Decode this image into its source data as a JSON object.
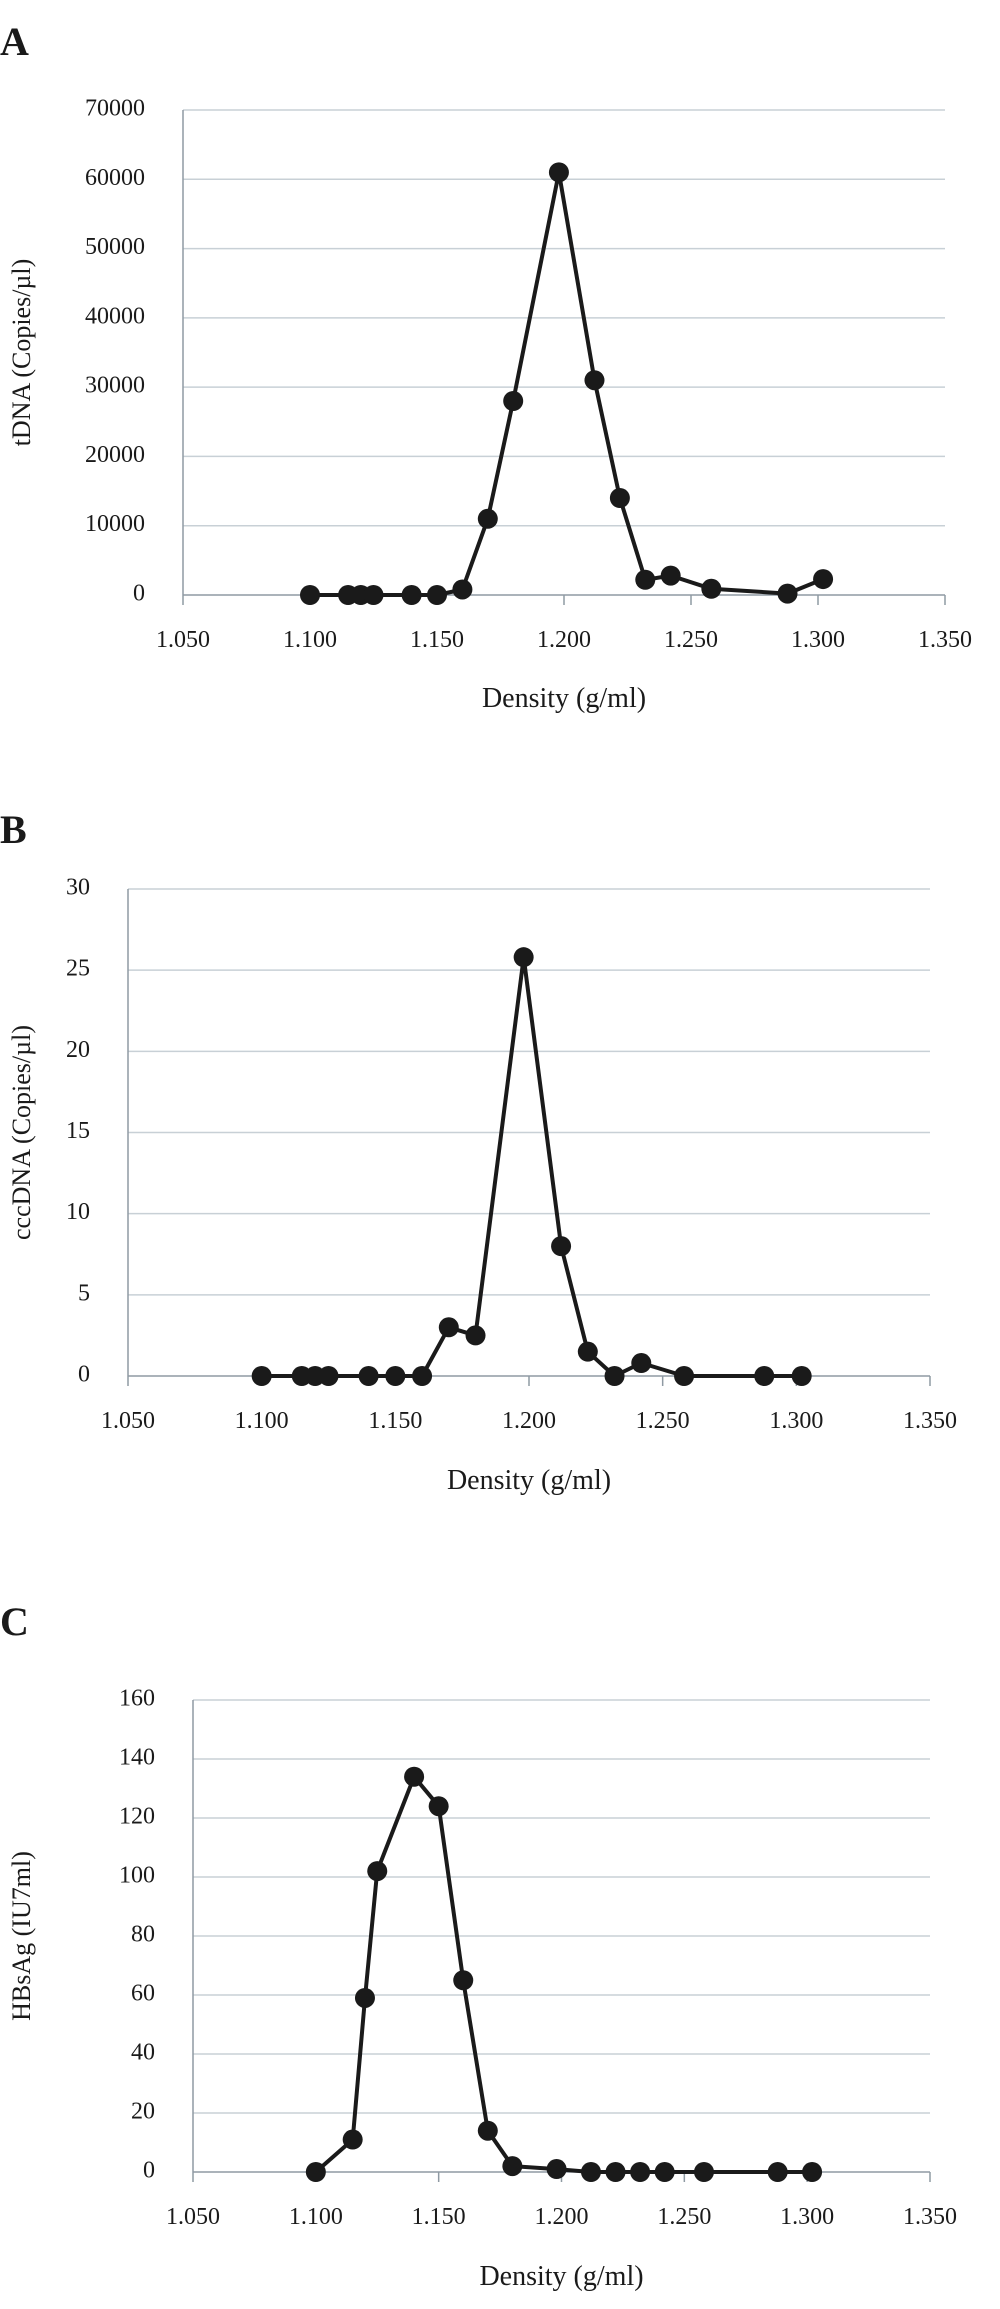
{
  "chart_data": [
    {
      "panel_label": "A",
      "type": "line",
      "xlabel": "Density (g/ml)",
      "ylabel": "tDNA (Copies/µl)",
      "xlim": [
        1.05,
        1.35
      ],
      "x_ticks": [
        "1.050",
        "1.100",
        "1.150",
        "1.200",
        "1.250",
        "1.300",
        "1.350"
      ],
      "ylim": [
        0,
        70000
      ],
      "y_ticks": [
        "0",
        "10000",
        "20000",
        "30000",
        "40000",
        "50000",
        "60000",
        "70000"
      ],
      "grid": true,
      "points": [
        {
          "x": 1.1,
          "y": 0
        },
        {
          "x": 1.115,
          "y": 0
        },
        {
          "x": 1.12,
          "y": 0
        },
        {
          "x": 1.125,
          "y": 0
        },
        {
          "x": 1.14,
          "y": 0
        },
        {
          "x": 1.15,
          "y": 0
        },
        {
          "x": 1.16,
          "y": 800
        },
        {
          "x": 1.17,
          "y": 11000
        },
        {
          "x": 1.18,
          "y": 28000
        },
        {
          "x": 1.198,
          "y": 61000
        },
        {
          "x": 1.212,
          "y": 31000
        },
        {
          "x": 1.222,
          "y": 14000
        },
        {
          "x": 1.232,
          "y": 2200
        },
        {
          "x": 1.242,
          "y": 2800
        },
        {
          "x": 1.258,
          "y": 900
        },
        {
          "x": 1.288,
          "y": 200
        },
        {
          "x": 1.302,
          "y": 2300
        }
      ]
    },
    {
      "panel_label": "B",
      "type": "line",
      "xlabel": "Density (g/ml)",
      "ylabel": "cccDNA (Copies/µl)",
      "xlim": [
        1.05,
        1.35
      ],
      "x_ticks": [
        "1.050",
        "1.100",
        "1.150",
        "1.200",
        "1.250",
        "1.300",
        "1.350"
      ],
      "ylim": [
        0,
        30
      ],
      "y_ticks": [
        "0",
        "5",
        "10",
        "15",
        "20",
        "25",
        "30"
      ],
      "grid": true,
      "points": [
        {
          "x": 1.1,
          "y": 0
        },
        {
          "x": 1.115,
          "y": 0
        },
        {
          "x": 1.12,
          "y": 0
        },
        {
          "x": 1.125,
          "y": 0
        },
        {
          "x": 1.14,
          "y": 0
        },
        {
          "x": 1.15,
          "y": 0
        },
        {
          "x": 1.16,
          "y": 0
        },
        {
          "x": 1.17,
          "y": 3
        },
        {
          "x": 1.18,
          "y": 2.5
        },
        {
          "x": 1.198,
          "y": 25.8
        },
        {
          "x": 1.212,
          "y": 8
        },
        {
          "x": 1.222,
          "y": 1.5
        },
        {
          "x": 1.232,
          "y": 0
        },
        {
          "x": 1.242,
          "y": 0.8
        },
        {
          "x": 1.258,
          "y": 0
        },
        {
          "x": 1.288,
          "y": 0
        },
        {
          "x": 1.302,
          "y": 0
        }
      ]
    },
    {
      "panel_label": "C",
      "type": "line",
      "xlabel": "Density (g/ml)",
      "ylabel": "HBsAg (IU7ml)",
      "xlim": [
        1.05,
        1.35
      ],
      "x_ticks": [
        "1.050",
        "1.100",
        "1.150",
        "1.200",
        "1.250",
        "1.300",
        "1.350"
      ],
      "ylim": [
        0,
        160
      ],
      "y_ticks": [
        "0",
        "20",
        "40",
        "60",
        "80",
        "100",
        "120",
        "140",
        "160"
      ],
      "grid": true,
      "points": [
        {
          "x": 1.1,
          "y": 0
        },
        {
          "x": 1.115,
          "y": 11
        },
        {
          "x": 1.12,
          "y": 59
        },
        {
          "x": 1.125,
          "y": 102
        },
        {
          "x": 1.14,
          "y": 134
        },
        {
          "x": 1.15,
          "y": 124
        },
        {
          "x": 1.16,
          "y": 65
        },
        {
          "x": 1.17,
          "y": 14
        },
        {
          "x": 1.18,
          "y": 2
        },
        {
          "x": 1.198,
          "y": 1
        },
        {
          "x": 1.212,
          "y": 0
        },
        {
          "x": 1.222,
          "y": 0
        },
        {
          "x": 1.232,
          "y": 0
        },
        {
          "x": 1.242,
          "y": 0
        },
        {
          "x": 1.258,
          "y": 0
        },
        {
          "x": 1.288,
          "y": 0
        },
        {
          "x": 1.302,
          "y": 0
        }
      ]
    }
  ],
  "colors": {
    "line": "#1a1a1a",
    "marker": "#1a1a1a",
    "grid": "#c8d0d6",
    "axis": "#8f9aa3",
    "text": "#1a1a1a"
  }
}
